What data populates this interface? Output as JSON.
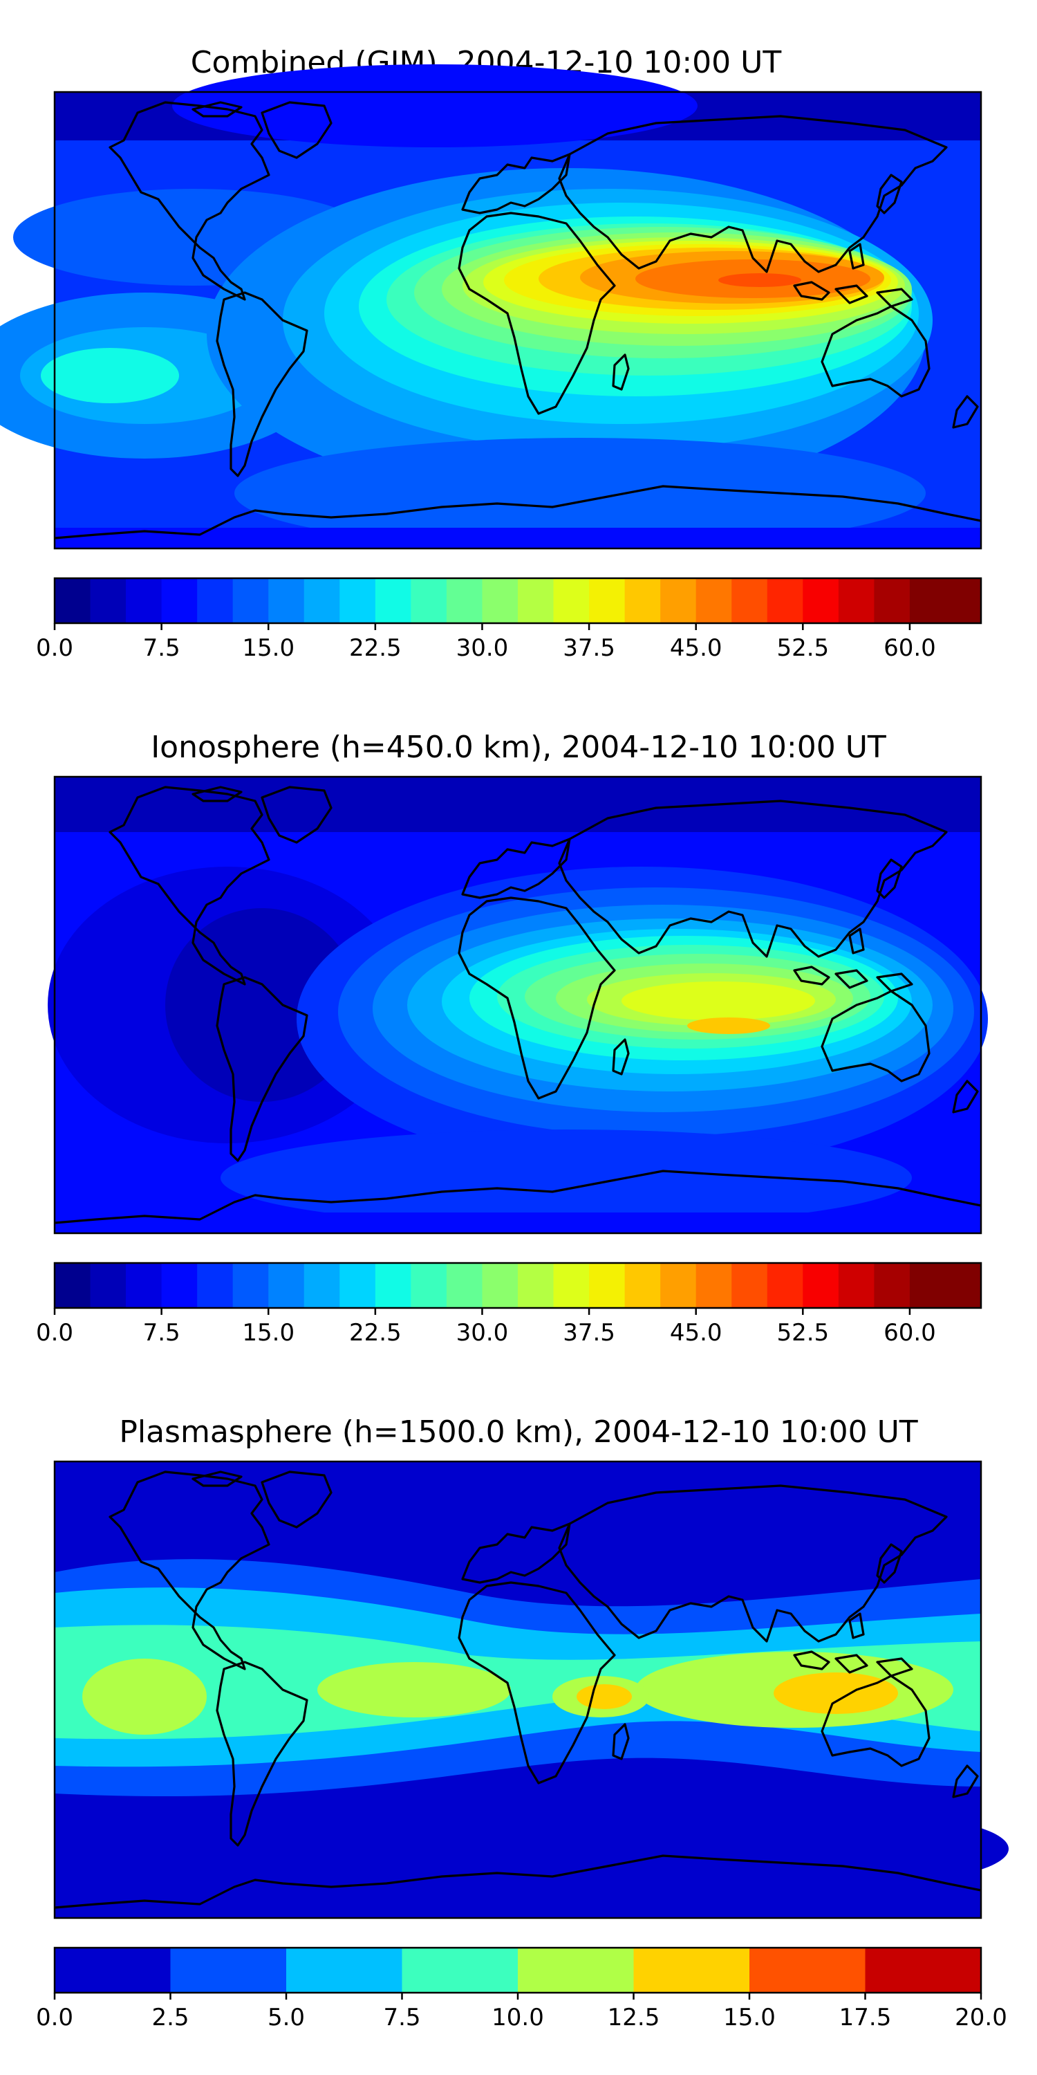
{
  "panels": [
    {
      "title": "Combined (GIM), 2004-12-10 10:00 UT",
      "colorbar_ticks": [
        "0.0",
        "7.5",
        "15.0",
        "22.5",
        "30.0",
        "37.5",
        "45.0",
        "52.5",
        "60.0"
      ],
      "levels": 26,
      "vmax": 65
    },
    {
      "title": "Ionosphere  (h=450.0 km), 2004-12-10 10:00 UT",
      "colorbar_ticks": [
        "0.0",
        "7.5",
        "15.0",
        "22.5",
        "30.0",
        "37.5",
        "45.0",
        "52.5",
        "60.0"
      ],
      "levels": 26,
      "vmax": 65
    },
    {
      "title": "Plasmasphere (h=1500.0 km), 2004-12-10 10:00 UT",
      "colorbar_ticks": [
        "0.0",
        "2.5",
        "5.0",
        "7.5",
        "10.0",
        "12.5",
        "15.0",
        "17.5",
        "20.0"
      ],
      "levels": 8,
      "vmax": 20
    }
  ],
  "colormaps": {
    "jet26": [
      "#00008f",
      "#0000b8",
      "#0000e1",
      "#0008ff",
      "#0031ff",
      "#005aff",
      "#0082ff",
      "#00abff",
      "#00d4ff",
      "#11fbe6",
      "#3affbd",
      "#63ff94",
      "#8bff6c",
      "#b4ff43",
      "#ddff1a",
      "#f4f103",
      "#ffc800",
      "#ff9f00",
      "#ff7700",
      "#ff4e00",
      "#ff2500",
      "#f80000",
      "#cf0000",
      "#a60000",
      "#800000",
      "#800000"
    ],
    "jet8": [
      "#0000cd",
      "#0050ff",
      "#00c0ff",
      "#3cffbe",
      "#b0ff47",
      "#ffd200",
      "#ff5200",
      "#c80000"
    ]
  }
}
